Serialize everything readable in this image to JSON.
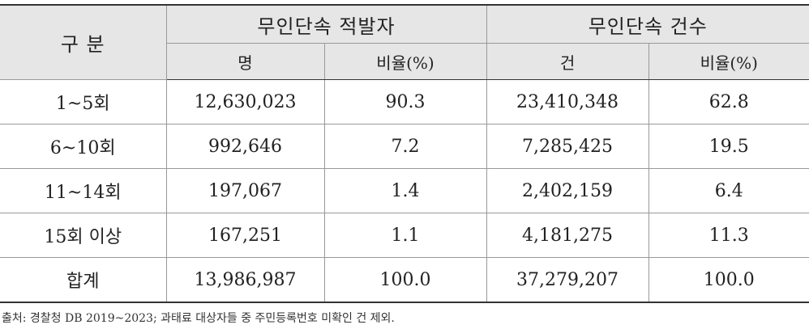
{
  "table": {
    "header": {
      "row_label": "구 분",
      "groups": [
        "무인단속 적발자",
        "무인단속 건수"
      ],
      "subheaders": [
        "명",
        "비율(%)",
        "건",
        "비율(%)"
      ]
    },
    "rows": [
      [
        "1~5회",
        "12,630,023",
        "90.3",
        "23,410,348",
        "62.8"
      ],
      [
        "6~10회",
        "992,646",
        "7.2",
        "7,285,425",
        "19.5"
      ],
      [
        "11~14회",
        "197,067",
        "1.4",
        "2,402,159",
        "6.4"
      ],
      [
        "15회 이상",
        "167,251",
        "1.1",
        "4,181,275",
        "11.3"
      ],
      [
        "합계",
        "13,986,987",
        "100.0",
        "37,279,207",
        "100.0"
      ]
    ]
  },
  "footnote": "출처: 경찰청 DB 2019~2023; 과태료 대상자들 중 주민등록번호 미확인 건 제외."
}
